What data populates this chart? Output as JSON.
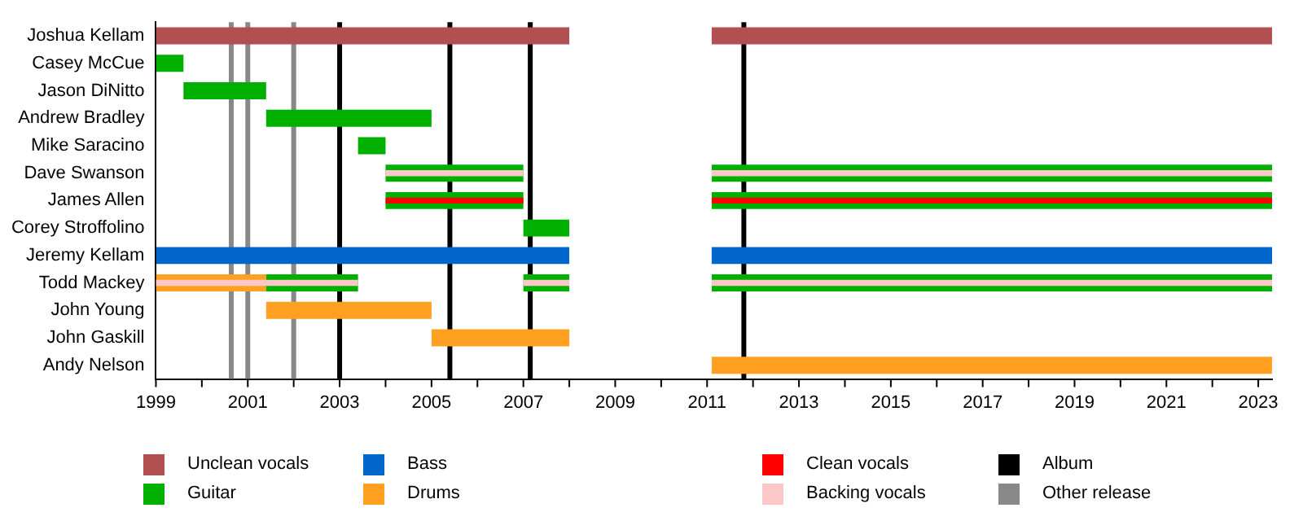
{
  "chart_data": {
    "type": "bar",
    "orientation": "horizontal",
    "categories": [
      "Joshua Kellam",
      "Casey McCue",
      "Jason DiNitto",
      "Andrew Bradley",
      "Mike Saracino",
      "Dave Swanson",
      "James Allen",
      "Corey Stroffolino",
      "Jeremy Kellam",
      "Todd Mackey",
      "John Young",
      "John Gaskill",
      "Andy Nelson"
    ],
    "series": [
      {
        "name": "Unclean vocals",
        "color": "#b24f50",
        "values": [
          9.0,
          null,
          null,
          null,
          null,
          null,
          null,
          null,
          null,
          null,
          null,
          null,
          null
        ],
        "base": [
          1999,
          null,
          null,
          null,
          null,
          null,
          null,
          null,
          null,
          null,
          null,
          null,
          null
        ]
      },
      {
        "name": "Guitar",
        "color": "#00b000",
        "values": [
          null,
          0.6,
          1.8,
          3.6,
          0.6,
          3.0,
          3.0,
          1.0,
          null,
          2.0,
          null,
          null,
          null
        ],
        "base": [
          null,
          1999,
          1999.6,
          2001.4,
          2003.4,
          2004,
          2004,
          2007,
          null,
          2001.4,
          null,
          null,
          null
        ]
      },
      {
        "name": "Bass",
        "color": "#0066cc",
        "values": [
          null,
          null,
          null,
          null,
          null,
          null,
          null,
          null,
          9.0,
          null,
          null,
          null,
          null
        ],
        "base": [
          null,
          null,
          null,
          null,
          null,
          null,
          null,
          null,
          1999,
          null,
          null,
          null,
          null
        ]
      },
      {
        "name": "Drums",
        "color": "#ffa020",
        "values": [
          null,
          null,
          null,
          null,
          null,
          null,
          null,
          null,
          null,
          2.4,
          3.6,
          3.0,
          12.2
        ],
        "base": [
          null,
          null,
          null,
          null,
          null,
          null,
          null,
          null,
          null,
          1999,
          2001.4,
          2005,
          2011.1
        ]
      },
      {
        "name": "Clean vocals",
        "color": "#ff0000",
        "values": [
          null,
          null,
          null,
          null,
          null,
          null,
          3.0,
          null,
          null,
          null,
          null,
          null,
          null
        ],
        "base": [
          null,
          null,
          null,
          null,
          null,
          null,
          2004,
          null,
          null,
          null,
          null,
          null,
          null
        ]
      },
      {
        "name": "Backing vocals",
        "color": "#ffc8c8",
        "values": [
          null,
          null,
          null,
          null,
          null,
          3.0,
          null,
          null,
          null,
          2.4,
          null,
          null,
          null
        ],
        "base": [
          null,
          null,
          null,
          null,
          null,
          2004,
          null,
          null,
          null,
          1999,
          null,
          null,
          null
        ]
      },
      {
        "color": "#b24f50",
        "values": [
          12.2,
          null,
          null,
          null,
          null,
          null,
          null,
          null,
          null,
          null,
          null,
          null,
          null
        ],
        "base": [
          2011.1,
          null,
          null,
          null,
          null,
          null,
          null,
          null,
          null,
          null,
          null,
          null,
          null
        ]
      },
      {
        "color": "#00b000",
        "values": [
          null,
          null,
          null,
          null,
          null,
          12.2,
          12.2,
          null,
          null,
          1.0,
          null,
          null,
          null
        ],
        "base": [
          null,
          null,
          null,
          null,
          null,
          2011.1,
          2011.1,
          null,
          null,
          2007,
          null,
          null,
          null
        ]
      },
      {
        "color": "#00b000",
        "values": [
          null,
          null,
          null,
          null,
          null,
          null,
          null,
          null,
          null,
          12.2,
          null,
          null,
          null
        ],
        "base": [
          null,
          null,
          null,
          null,
          null,
          null,
          null,
          null,
          null,
          2011.1,
          null,
          null,
          null
        ]
      },
      {
        "color": "#0066cc",
        "values": [
          null,
          null,
          null,
          null,
          null,
          null,
          null,
          null,
          12.2,
          null,
          null,
          null,
          null
        ],
        "base": [
          null,
          null,
          null,
          null,
          null,
          null,
          null,
          null,
          2011.1,
          null,
          null,
          null,
          null
        ]
      },
      {
        "color": "#ff0000",
        "values": [
          null,
          null,
          null,
          null,
          null,
          null,
          12.2,
          null,
          null,
          null,
          null,
          null,
          null
        ],
        "base": [
          null,
          null,
          null,
          null,
          null,
          null,
          2011.1,
          null,
          null,
          null,
          null,
          null,
          null
        ]
      },
      {
        "color": "#ffc8c8",
        "values": [
          null,
          null,
          null,
          null,
          null,
          12.2,
          null,
          null,
          null,
          2.0,
          null,
          null,
          null
        ],
        "base": [
          null,
          null,
          null,
          null,
          null,
          2011.1,
          null,
          null,
          null,
          2001.4,
          null,
          null,
          null
        ]
      },
      {
        "color": "#ffc8c8",
        "values": [
          null,
          null,
          null,
          null,
          null,
          null,
          null,
          null,
          null,
          1.0,
          null,
          null,
          null
        ],
        "base": [
          null,
          null,
          null,
          null,
          null,
          null,
          null,
          null,
          null,
          2007,
          null,
          null,
          null
        ]
      },
      {
        "color": "#ffc8c8",
        "values": [
          null,
          null,
          null,
          null,
          null,
          null,
          null,
          null,
          null,
          12.2,
          null,
          null,
          null
        ],
        "base": [
          null,
          null,
          null,
          null,
          null,
          null,
          null,
          null,
          null,
          2011.1,
          null,
          null,
          null
        ]
      }
    ],
    "xlim": [
      1999,
      2023.3
    ],
    "xticks": [
      1999,
      {
        "value": 2000,
        "label": null
      },
      2001,
      {
        "value": 2002,
        "label": null
      },
      2003,
      {
        "value": 2004,
        "label": null
      },
      2005,
      {
        "value": 2006,
        "label": null
      },
      2007,
      {
        "value": 2008,
        "label": null
      },
      2009,
      {
        "value": 2010,
        "label": null
      },
      2011,
      {
        "value": 2012,
        "label": null
      },
      2013,
      {
        "value": 2014,
        "label": null
      },
      2015,
      {
        "value": 2016,
        "label": null
      },
      2017,
      {
        "value": 2018,
        "label": null
      },
      2019,
      {
        "value": 2020,
        "label": null
      },
      2021,
      {
        "value": 2022,
        "label": null
      },
      2023
    ],
    "ref_lines": [
      {
        "axis": "x",
        "value": 2003.0,
        "label": "Album",
        "color": "#000000"
      },
      {
        "axis": "x",
        "value": 2005.4,
        "color": "#000000"
      },
      {
        "axis": "x",
        "value": 2007.15,
        "color": "#000000"
      },
      {
        "axis": "x",
        "value": 2011.8,
        "color": "#000000"
      },
      {
        "axis": "x",
        "value": 2000.64,
        "label": "Other release",
        "color": "#888888"
      },
      {
        "axis": "x",
        "value": 2001.0,
        "color": "#888888"
      },
      {
        "axis": "x",
        "value": 2002.0,
        "color": "#888888"
      }
    ],
    "grid": false,
    "legend": "bottom"
  }
}
